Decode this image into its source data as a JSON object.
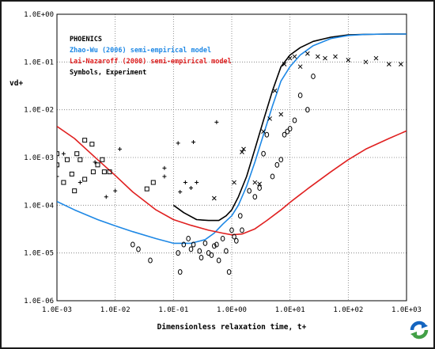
{
  "chart_data": {
    "type": "scatter",
    "x_scale": "log",
    "y_scale": "log",
    "xlim": [
      0.001,
      1000
    ],
    "ylim": [
      1e-06,
      1
    ],
    "xlabel": "Dimensionless relaxation time, t+",
    "ylabel": "vd+",
    "x_ticks": [
      "1.0E-03",
      "1.0E-02",
      "1.0E-01",
      "1.0E+00",
      "1.0E+01",
      "1.0E+02",
      "1.0E+03"
    ],
    "y_ticks": [
      "1.0E+00",
      "1.0E-01",
      "1.0E-02",
      "1.0E-03",
      "1.0E-04",
      "1.0E-05",
      "1.0E-06"
    ],
    "legend": [
      {
        "text": "PHOENICS",
        "color": "#000000"
      },
      {
        "text": "Zhao-Wu (2006) semi-empirical model",
        "color": "#1e88e5"
      },
      {
        "text": "Lai-Nazaroff (2000) semi-empirical model",
        "color": "#e02020"
      },
      {
        "text": "Symbols, Experiment",
        "color": "#000000"
      }
    ],
    "series": [
      {
        "style": "line",
        "color": "#000000",
        "x": [
          0.1,
          0.15,
          0.25,
          0.4,
          0.6,
          0.8,
          1.0,
          1.3,
          1.8,
          2.5,
          3.5,
          5,
          7,
          10,
          15,
          25,
          50,
          100,
          200,
          500,
          1000
        ],
        "y": [
          0.0001,
          7e-05,
          5e-05,
          4.8e-05,
          4.8e-05,
          6e-05,
          8e-05,
          0.00015,
          0.0004,
          0.0015,
          0.006,
          0.025,
          0.08,
          0.14,
          0.2,
          0.27,
          0.33,
          0.37,
          0.38,
          0.385,
          0.385
        ]
      },
      {
        "style": "line",
        "color": "#1e88e5",
        "x": [
          0.001,
          0.002,
          0.005,
          0.01,
          0.02,
          0.05,
          0.1,
          0.2,
          0.35,
          0.5,
          0.7,
          1.0,
          1.3,
          1.8,
          2.5,
          3.5,
          5,
          7,
          10,
          15,
          25,
          50,
          100,
          200,
          500,
          1000
        ],
        "y": [
          0.00012,
          8e-05,
          5e-05,
          3.7e-05,
          2.8e-05,
          2e-05,
          1.6e-05,
          1.6e-05,
          1.9e-05,
          2.6e-05,
          4e-05,
          6e-05,
          0.0001,
          0.00025,
          0.0008,
          0.003,
          0.012,
          0.04,
          0.08,
          0.14,
          0.22,
          0.31,
          0.36,
          0.38,
          0.385,
          0.385
        ]
      },
      {
        "style": "line",
        "color": "#e02020",
        "x": [
          0.001,
          0.002,
          0.005,
          0.01,
          0.02,
          0.05,
          0.1,
          0.2,
          0.4,
          0.7,
          1.0,
          1.5,
          2.5,
          4,
          7,
          10,
          20,
          50,
          100,
          200,
          500,
          1000
        ],
        "y": [
          0.0045,
          0.0025,
          0.0009,
          0.00042,
          0.00019,
          8e-05,
          5e-05,
          3.8e-05,
          3e-05,
          2.6e-05,
          2.4e-05,
          2.5e-05,
          3.2e-05,
          4.8e-05,
          8e-05,
          0.000115,
          0.00022,
          0.0005,
          0.0009,
          0.0015,
          0.0025,
          0.0036
        ]
      },
      {
        "style": "markers",
        "marker": "square",
        "color": "#000000",
        "x": [
          0.001,
          0.001,
          0.0013,
          0.0015,
          0.0018,
          0.002,
          0.0022,
          0.0025,
          0.003,
          0.003,
          0.004,
          0.0042,
          0.005,
          0.006,
          0.0065,
          0.008,
          0.035,
          0.045
        ],
        "y": [
          0.0012,
          0.0007,
          0.0003,
          0.0009,
          0.00045,
          0.0002,
          0.0012,
          0.0009,
          0.0023,
          0.00035,
          0.0019,
          0.0005,
          0.0007,
          0.0009,
          0.0005,
          0.0005,
          0.00022,
          0.0003
        ]
      },
      {
        "style": "markers",
        "marker": "plus",
        "color": "#000000",
        "x": [
          0.001,
          0.0013,
          0.0025,
          0.0045,
          0.007,
          0.01,
          0.012,
          0.07,
          0.07,
          0.12,
          0.13,
          0.16,
          0.2,
          0.22,
          0.25,
          0.55
        ],
        "y": [
          0.0004,
          0.0012,
          0.0003,
          0.0008,
          0.00015,
          0.0002,
          0.0015,
          0.0006,
          0.0004,
          0.002,
          0.00019,
          0.0003,
          0.00023,
          0.0021,
          0.0003,
          0.0055
        ]
      },
      {
        "style": "markers",
        "marker": "cross",
        "color": "#000000",
        "x": [
          0.5,
          1.1,
          1.5,
          1.6,
          2.5,
          3.0,
          3.5,
          4.5,
          5.5,
          7,
          8,
          10,
          12,
          15,
          20,
          30,
          40,
          60,
          100,
          200,
          300,
          500,
          800
        ],
        "y": [
          0.00014,
          0.0003,
          0.0013,
          0.0015,
          0.0003,
          0.00028,
          0.0035,
          0.0065,
          0.025,
          0.008,
          0.09,
          0.12,
          0.13,
          0.08,
          0.15,
          0.13,
          0.12,
          0.13,
          0.11,
          0.1,
          0.12,
          0.09,
          0.09
        ]
      },
      {
        "style": "markers",
        "marker": "circle",
        "color": "#000000",
        "x": [
          0.02,
          0.025,
          0.04,
          0.12,
          0.13,
          0.15,
          0.18,
          0.2,
          0.22,
          0.28,
          0.3,
          0.35,
          0.4,
          0.45,
          0.5,
          0.55,
          0.6,
          0.7,
          0.8,
          0.9,
          1.0,
          1.1,
          1.2,
          1.4,
          1.5,
          2.0,
          2.5,
          3.0,
          3.5,
          4,
          5,
          6,
          7,
          8,
          9,
          10,
          12,
          15,
          20,
          25
        ],
        "y": [
          1.5e-05,
          1.2e-05,
          7e-06,
          1e-05,
          4e-06,
          1.5e-05,
          2e-05,
          1.2e-05,
          1.5e-05,
          1.1e-05,
          8e-06,
          1.6e-05,
          1e-05,
          9e-06,
          1.4e-05,
          1.5e-05,
          7e-06,
          2e-05,
          1.1e-05,
          4e-06,
          3e-05,
          2.2e-05,
          1.8e-05,
          6e-05,
          3e-05,
          0.0002,
          0.00015,
          0.00023,
          0.0012,
          0.003,
          0.0004,
          0.0007,
          0.0009,
          0.003,
          0.0035,
          0.004,
          0.006,
          0.02,
          0.01,
          0.05
        ]
      }
    ]
  },
  "logo": {
    "icon": "recycle-arrows-icon",
    "color_dark": "#1565c0",
    "color_light": "#43a047"
  }
}
